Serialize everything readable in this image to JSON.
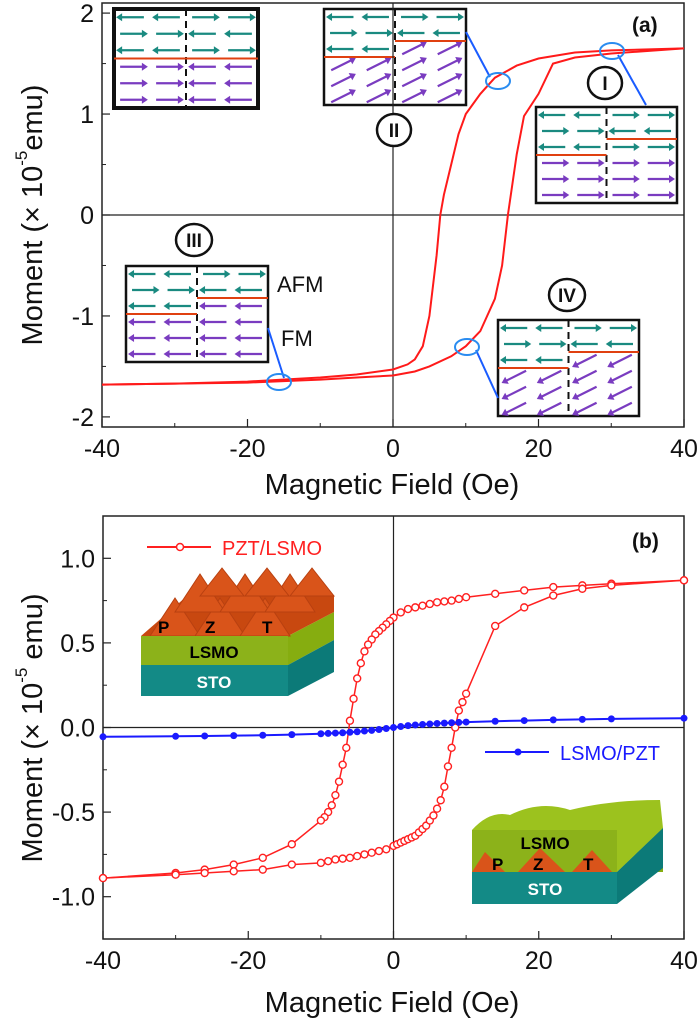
{
  "colors": {
    "curve_a": "#ff1a1a",
    "pzt_lsmo": "#ff2020",
    "lsmo_pzt": "#1a1aff",
    "teal": "#1a8a80",
    "purple": "#7a3cc0",
    "interface": "#e04010",
    "callout": "#1a5cff",
    "ellipse": "#2a8cf0",
    "orange": "#d9541a",
    "green": "#8cb21a",
    "sto": "#138a86"
  },
  "chart_data": [
    {
      "type": "line",
      "panel_label": "(a)",
      "xlabel": "Magnetic Field (Oe)",
      "ylabel": "Moment (× 10",
      "ylabel_exp": "-5",
      "ylabel_unit": "emu)",
      "xlim": [
        -40,
        40
      ],
      "ylim": [
        -2.1,
        2.1
      ],
      "xticks": [
        -40,
        -20,
        0,
        20,
        40
      ],
      "yticks": [
        -2,
        -1,
        0,
        1,
        2
      ],
      "grid": false,
      "zero_lines": true,
      "series": [
        {
          "branch": "descending",
          "x": [
            40,
            30,
            25,
            20,
            17,
            14,
            12,
            10,
            9,
            8,
            7,
            6.5,
            6,
            5,
            4.1,
            3,
            2,
            0,
            -5,
            -10,
            -20,
            -30,
            -40
          ],
          "y": [
            1.65,
            1.63,
            1.61,
            1.55,
            1.48,
            1.36,
            1.2,
            1.0,
            0.8,
            0.5,
            0.2,
            0.0,
            -0.4,
            -1.0,
            -1.3,
            -1.43,
            -1.48,
            -1.53,
            -1.58,
            -1.61,
            -1.65,
            -1.67,
            -1.68
          ]
        },
        {
          "branch": "ascending",
          "x": [
            -40,
            -30,
            -20,
            -10,
            -5,
            0,
            3,
            5,
            8,
            10,
            12,
            14,
            15,
            15.8,
            17,
            18,
            20,
            22,
            25,
            30,
            40
          ],
          "y": [
            -1.68,
            -1.67,
            -1.66,
            -1.63,
            -1.61,
            -1.59,
            -1.55,
            -1.5,
            -1.4,
            -1.3,
            -1.15,
            -0.83,
            -0.5,
            0.0,
            0.6,
            0.98,
            1.2,
            1.5,
            1.56,
            1.6,
            1.65
          ]
        }
      ],
      "annotations": {
        "states": [
          "I",
          "II",
          "III",
          "IV"
        ],
        "afm": "AFM",
        "fm": "FM"
      }
    },
    {
      "type": "line",
      "panel_label": "(b)",
      "xlabel": "Magnetic Field (Oe)",
      "ylabel": "Moment (× 10",
      "ylabel_exp": "-5",
      "ylabel_unit": " emu)",
      "xlim": [
        -40,
        40
      ],
      "ylim": [
        -1.25,
        1.25
      ],
      "xticks": [
        -40,
        -20,
        0,
        20,
        40
      ],
      "yticks": [
        -1.0,
        -0.5,
        0.0,
        0.5,
        1.0
      ],
      "ytick_labels": [
        "-1.0",
        "-0.5",
        "0.0",
        "0.5",
        "1.0"
      ],
      "grid": false,
      "zero_lines": true,
      "legend": [
        "PZT/LSMO",
        "LSMO/PZT"
      ],
      "series": [
        {
          "name": "PZT/LSMO",
          "marker": "open-circle",
          "x": [
            40,
            30,
            26,
            22,
            18,
            14,
            10,
            9,
            8,
            7,
            6,
            5,
            4,
            3,
            2,
            1,
            0,
            -0.5,
            -1,
            -1.5,
            -2,
            -2.5,
            -3,
            -3.5,
            -4,
            -4.5,
            -5,
            -5.5,
            -6,
            -6.5,
            -7,
            -7.5,
            -8,
            -8.5,
            -9,
            -9.5,
            -10,
            -14,
            -18,
            -22,
            -26,
            -30,
            -40
          ],
          "y": [
            0.87,
            0.85,
            0.84,
            0.83,
            0.81,
            0.79,
            0.77,
            0.76,
            0.75,
            0.745,
            0.74,
            0.73,
            0.72,
            0.71,
            0.7,
            0.68,
            0.65,
            0.63,
            0.61,
            0.59,
            0.57,
            0.55,
            0.52,
            0.49,
            0.45,
            0.38,
            0.29,
            0.17,
            0.04,
            -0.12,
            -0.22,
            -0.32,
            -0.4,
            -0.46,
            -0.5,
            -0.53,
            -0.55,
            -0.69,
            -0.77,
            -0.81,
            -0.84,
            -0.86,
            -0.89
          ],
          "x2": [
            -40,
            -30,
            -26,
            -22,
            -18,
            -14,
            -10,
            -9,
            -8,
            -7,
            -6,
            -5,
            -4,
            -3,
            -2,
            -1,
            0,
            0.5,
            1,
            1.5,
            2,
            2.5,
            3,
            3.5,
            4,
            4.5,
            5,
            5.5,
            6,
            6.5,
            7,
            7.5,
            8,
            8.5,
            9,
            9.5,
            10,
            14,
            18,
            22,
            26,
            30,
            40
          ],
          "y2": [
            -0.89,
            -0.87,
            -0.86,
            -0.85,
            -0.84,
            -0.81,
            -0.8,
            -0.79,
            -0.78,
            -0.775,
            -0.77,
            -0.76,
            -0.75,
            -0.74,
            -0.73,
            -0.72,
            -0.7,
            -0.69,
            -0.68,
            -0.67,
            -0.66,
            -0.65,
            -0.64,
            -0.62,
            -0.6,
            -0.58,
            -0.55,
            -0.52,
            -0.48,
            -0.43,
            -0.35,
            -0.23,
            -0.12,
            0.0,
            0.1,
            0.15,
            0.2,
            0.6,
            0.71,
            0.78,
            0.82,
            0.84,
            0.87
          ]
        },
        {
          "name": "LSMO/PZT",
          "marker": "filled-circle",
          "x": [
            -40,
            -30,
            -26,
            -22,
            -18,
            -14,
            -10,
            -9,
            -8,
            -7,
            -6,
            -5,
            -4,
            -3,
            -2,
            -1,
            0,
            1,
            2,
            3,
            4,
            5,
            6,
            7,
            8,
            9,
            10,
            14,
            18,
            22,
            26,
            30,
            40
          ],
          "y": [
            -0.055,
            -0.052,
            -0.05,
            -0.048,
            -0.046,
            -0.042,
            -0.037,
            -0.035,
            -0.033,
            -0.031,
            -0.028,
            -0.025,
            -0.021,
            -0.017,
            -0.012,
            -0.006,
            0.0,
            0.006,
            0.011,
            0.015,
            0.018,
            0.021,
            0.024,
            0.026,
            0.028,
            0.03,
            0.032,
            0.037,
            0.041,
            0.045,
            0.048,
            0.051,
            0.055
          ]
        }
      ],
      "insets": {
        "top_layer_letters": [
          "P",
          "Z",
          "T"
        ],
        "middle": "LSMO",
        "substrate": "STO"
      }
    }
  ],
  "spin_diagrams": [
    {
      "id": "initial",
      "rows": [
        "tL tL tR tR",
        "tR tR tL tL",
        "tL tL tR tR",
        "pR pR pL pL",
        "pR pR pL pL",
        "pR pR pL pL"
      ],
      "iface_left": 3,
      "iface_right": 3
    },
    {
      "id": "II",
      "rows": [
        "tL tL tR tR",
        "tR tR tL tL",
        "tL tL pU pU",
        "pU pU pU pU",
        "pU pU pU pU",
        "pU pU pU pU"
      ],
      "iface_left": 3,
      "iface_right": 2
    },
    {
      "id": "I",
      "rows": [
        "tL tL tR tR",
        "tR tR tL tL",
        "tL tL tR tR",
        "pR pR pR pR",
        "pR pR pR pR",
        "pR pR pR pR"
      ],
      "iface_left": 3,
      "iface_right": 2
    },
    {
      "id": "III",
      "rows": [
        "tL tL tR tR",
        "tR tR tL tL",
        "tL tL pL pL",
        "pL pL pL pL",
        "pL pL pL pL",
        "pL pL pL pL"
      ],
      "iface_left": 3,
      "iface_right": 2
    },
    {
      "id": "IV",
      "rows": [
        "tL tL tR tR",
        "tR tR tL tL",
        "tL tL pD pD",
        "pD pD pD pD",
        "pD pD pD pD",
        "pD pD pD pD"
      ],
      "iface_left": 3,
      "iface_right": 2
    }
  ]
}
